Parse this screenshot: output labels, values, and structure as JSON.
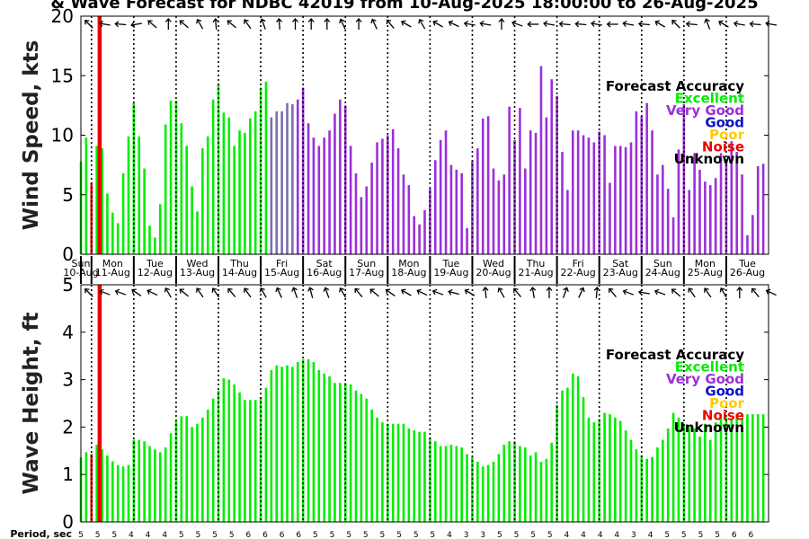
{
  "title": "& Wave Forecast for NDBC 42019 from 10-Aug-2025 18:00:00 to 26-Aug-2025",
  "colors": {
    "excellent": "#00ee00",
    "very_good": "#9b30d9",
    "good": "#1010cc",
    "poor": "#ffcc00",
    "noise": "#ee0000",
    "unknown": "#000000",
    "transition": "#7a6fb0"
  },
  "day_labels": [
    {
      "day": "Sun",
      "date": "10-Aug"
    },
    {
      "day": "Mon",
      "date": "11-Aug"
    },
    {
      "day": "Tue",
      "date": "12-Aug"
    },
    {
      "day": "Wed",
      "date": "13-Aug"
    },
    {
      "day": "Thu",
      "date": "14-Aug"
    },
    {
      "day": "Fri",
      "date": "15-Aug"
    },
    {
      "day": "Sat",
      "date": "16-Aug"
    },
    {
      "day": "Sun",
      "date": "17-Aug"
    },
    {
      "day": "Mon",
      "date": "18-Aug"
    },
    {
      "day": "Tue",
      "date": "19-Aug"
    },
    {
      "day": "Wed",
      "date": "20-Aug"
    },
    {
      "day": "Thu",
      "date": "21-Aug"
    },
    {
      "day": "Fri",
      "date": "22-Aug"
    },
    {
      "day": "Sat",
      "date": "23-Aug"
    },
    {
      "day": "Sun",
      "date": "24-Aug"
    },
    {
      "day": "Mon",
      "date": "25-Aug"
    },
    {
      "day": "Tue",
      "date": "26-Aug"
    }
  ],
  "legend": {
    "title": "Forecast Accuracy",
    "items": [
      {
        "label": "Excellent",
        "color": "#00ee00"
      },
      {
        "label": "Very Good",
        "color": "#9b30d9"
      },
      {
        "label": "Good",
        "color": "#1010cc"
      },
      {
        "label": "Poor",
        "color": "#ffcc00"
      },
      {
        "label": "Noise",
        "color": "#ee0000"
      },
      {
        "label": "Unknown",
        "color": "#000000"
      }
    ]
  },
  "period_label": "Period, sec",
  "chart_data": [
    {
      "type": "bar",
      "ylabel": "Wind Speed, kts",
      "ylim": [
        0,
        20
      ],
      "yticks": [
        0,
        5,
        10,
        15,
        20
      ],
      "x_start": "10-Aug-2025 18:00",
      "step_hours": 3,
      "values": [
        7.8,
        9.8,
        6.0,
        9.1,
        8.9,
        5.1,
        3.5,
        2.6,
        6.8,
        9.9,
        12.7,
        9.9,
        7.2,
        2.4,
        1.4,
        4.2,
        10.9,
        12.9,
        12.9,
        11.0,
        9.1,
        5.7,
        3.6,
        8.9,
        9.9,
        13.0,
        14.3,
        11.9,
        11.5,
        9.1,
        10.4,
        10.2,
        11.4,
        12.0,
        14.0,
        14.5,
        11.5,
        12.0,
        12.0,
        12.7,
        12.6,
        13.0,
        14.0,
        11.0,
        9.8,
        9.1,
        9.8,
        10.4,
        11.8,
        13.0,
        12.5,
        9.1,
        6.8,
        4.8,
        5.7,
        7.7,
        9.4,
        9.7,
        10.0,
        10.5,
        8.9,
        6.7,
        5.8,
        3.2,
        2.5,
        3.7,
        5.5,
        7.9,
        9.6,
        10.4,
        7.5,
        7.1,
        6.8,
        2.2,
        7.8,
        8.9,
        11.4,
        11.6,
        7.2,
        6.2,
        6.7,
        12.4,
        9.6,
        12.3,
        7.2,
        10.4,
        10.2,
        15.8,
        11.5,
        14.7,
        13.3,
        8.6,
        5.4,
        10.4,
        10.4,
        10.0,
        9.8,
        9.4,
        10.3,
        10.0,
        6.0,
        9.1,
        9.1,
        9.0,
        9.4,
        12.0,
        11.6,
        12.7,
        10.4,
        6.7,
        7.5,
        5.5,
        3.1,
        8.8,
        12.6,
        5.4,
        8.5,
        7.1,
        6.1,
        5.8,
        6.4,
        8.5,
        8.0,
        9.5,
        8.6,
        6.7,
        1.6,
        3.3,
        7.4,
        7.6
      ],
      "quality": [
        "E",
        "E",
        "N",
        "E",
        "E",
        "E",
        "E",
        "E",
        "E",
        "E",
        "E",
        "E",
        "E",
        "E",
        "E",
        "E",
        "E",
        "E",
        "E",
        "E",
        "E",
        "E",
        "E",
        "E",
        "E",
        "E",
        "E",
        "E",
        "E",
        "E",
        "E",
        "E",
        "E",
        "E",
        "E",
        "E",
        "T",
        "T",
        "T",
        "T",
        "T",
        "V",
        "V",
        "V",
        "V",
        "V",
        "V",
        "V",
        "V",
        "V",
        "V",
        "V",
        "V",
        "V",
        "V",
        "V",
        "V",
        "V",
        "V",
        "V",
        "V",
        "V",
        "V",
        "V",
        "V",
        "V",
        "V",
        "V",
        "V",
        "V",
        "V",
        "V",
        "V",
        "V",
        "V",
        "V",
        "V",
        "V",
        "V",
        "V",
        "V",
        "V",
        "V",
        "V",
        "V",
        "V",
        "V",
        "V",
        "V",
        "V",
        "V",
        "V",
        "V",
        "V",
        "V",
        "V",
        "V",
        "V",
        "V",
        "V",
        "V",
        "V",
        "V",
        "V",
        "V",
        "V",
        "V",
        "V",
        "V",
        "V",
        "V",
        "V",
        "V",
        "V",
        "V",
        "V",
        "V",
        "V",
        "V",
        "V",
        "V",
        "V",
        "V",
        "V",
        "V",
        "V",
        "V",
        "V",
        "V",
        "V"
      ],
      "direction_deg": [
        135,
        115,
        120,
        100,
        100,
        100,
        95,
        90,
        90,
        80,
        95,
        115,
        130,
        145,
        160,
        180,
        150,
        135,
        130,
        125,
        135,
        150,
        160,
        170,
        175,
        155,
        140,
        130,
        130,
        135,
        145,
        150,
        165,
        160,
        175,
        170,
        175,
        180,
        175,
        180,
        165,
        160,
        180,
        195,
        180,
        180,
        175,
        165,
        155,
        155,
        165,
        180,
        195,
        175,
        155,
        150,
        140,
        140,
        125,
        120,
        120,
        130,
        145,
        150,
        145,
        130,
        120,
        110,
        110,
        115,
        115,
        100,
        100,
        95,
        95,
        100,
        110,
        180,
        180,
        170,
        160,
        110,
        100,
        95,
        90,
        90,
        95,
        100,
        100,
        100,
        95,
        90,
        90,
        95,
        100,
        100,
        100,
        90,
        90,
        90,
        90,
        95,
        100,
        100,
        95,
        95,
        100,
        100,
        120,
        140,
        155,
        135,
        110,
        100,
        95,
        120,
        140,
        160,
        150,
        130,
        120,
        110,
        105,
        100,
        100,
        95,
        95,
        100,
        100,
        100
      ]
    },
    {
      "type": "bar",
      "ylabel": "Wave Height, ft",
      "ylim": [
        0,
        5
      ],
      "yticks": [
        0,
        1,
        2,
        3,
        4,
        5
      ],
      "x_start": "10-Aug-2025 18:00",
      "step_hours": 3,
      "values": [
        1.36,
        1.47,
        1.43,
        1.63,
        1.53,
        1.4,
        1.28,
        1.2,
        1.17,
        1.2,
        1.73,
        1.73,
        1.7,
        1.6,
        1.53,
        1.47,
        1.57,
        1.87,
        2.13,
        2.23,
        2.23,
        2.0,
        2.07,
        2.2,
        2.37,
        2.6,
        2.77,
        3.03,
        3.0,
        2.9,
        2.73,
        2.57,
        2.57,
        2.57,
        2.63,
        2.83,
        3.2,
        3.3,
        3.27,
        3.3,
        3.27,
        3.37,
        3.43,
        3.43,
        3.37,
        3.2,
        3.13,
        3.07,
        2.93,
        2.93,
        2.93,
        2.9,
        2.77,
        2.7,
        2.6,
        2.37,
        2.2,
        2.1,
        2.07,
        2.07,
        2.07,
        2.07,
        1.97,
        1.93,
        1.9,
        1.9,
        1.77,
        1.7,
        1.6,
        1.6,
        1.63,
        1.6,
        1.57,
        1.43,
        1.37,
        1.27,
        1.17,
        1.2,
        1.27,
        1.43,
        1.63,
        1.7,
        1.7,
        1.6,
        1.57,
        1.4,
        1.47,
        1.27,
        1.33,
        1.67,
        2.47,
        2.77,
        2.83,
        3.13,
        3.07,
        2.63,
        2.2,
        2.1,
        2.17,
        2.3,
        2.27,
        2.2,
        2.13,
        1.93,
        1.73,
        1.53,
        1.4,
        1.33,
        1.37,
        1.57,
        1.73,
        1.97,
        2.3,
        2.2,
        2.07,
        2.0,
        1.97,
        1.8,
        2.07,
        1.73,
        2.1,
        2.2,
        2.2,
        2.17,
        2.27,
        2.2,
        2.27,
        2.27,
        2.27,
        2.27
      ],
      "quality": [
        "E",
        "E",
        "N",
        "E",
        "E",
        "E",
        "E",
        "E",
        "E",
        "E",
        "E",
        "E",
        "E",
        "E",
        "E",
        "E",
        "E",
        "E",
        "E",
        "E",
        "E",
        "E",
        "E",
        "E",
        "E",
        "E",
        "E",
        "E",
        "E",
        "E",
        "E",
        "E",
        "E",
        "E",
        "E",
        "E",
        "E",
        "E",
        "E",
        "E",
        "E",
        "E",
        "E",
        "E",
        "E",
        "E",
        "E",
        "E",
        "E",
        "E",
        "E",
        "E",
        "E",
        "E",
        "E",
        "E",
        "E",
        "E",
        "E",
        "E",
        "E",
        "E",
        "E",
        "E",
        "E",
        "E",
        "E",
        "E",
        "E",
        "E",
        "E",
        "E",
        "E",
        "E",
        "E",
        "E",
        "E",
        "E",
        "E",
        "E",
        "E",
        "E",
        "E",
        "E",
        "E",
        "E",
        "E",
        "E",
        "E",
        "E",
        "E",
        "E",
        "E",
        "E",
        "E",
        "E",
        "E",
        "E",
        "E",
        "E",
        "E",
        "E",
        "E",
        "E",
        "E",
        "E",
        "E",
        "E",
        "E",
        "E",
        "E",
        "E",
        "E",
        "E",
        "E",
        "E",
        "E",
        "E",
        "E",
        "E",
        "E",
        "E",
        "E",
        "E",
        "E",
        "E",
        "E",
        "E",
        "E",
        "E"
      ],
      "direction_deg": [
        135,
        130,
        115,
        110,
        110,
        110,
        110,
        110,
        120,
        125,
        125,
        120,
        115,
        140,
        150,
        150,
        145,
        130,
        130,
        130,
        140,
        145,
        150,
        150,
        145,
        145,
        140,
        140,
        140,
        145,
        145,
        145,
        150,
        150,
        150,
        155,
        155,
        155,
        160,
        160,
        155,
        160,
        165,
        165,
        160,
        160,
        155,
        150,
        150,
        145,
        145,
        140,
        140,
        135,
        130,
        130,
        130,
        125,
        125,
        120,
        120,
        120,
        115,
        115,
        115,
        110,
        110,
        105,
        105,
        105,
        110,
        110,
        120,
        140,
        160,
        175,
        175,
        160,
        150,
        145,
        140,
        140,
        150,
        160,
        170,
        170,
        175,
        180,
        195,
        195,
        200,
        215,
        215,
        205,
        200,
        195,
        185,
        165,
        150,
        140,
        135,
        120,
        110,
        105,
        100,
        100,
        100,
        105,
        110,
        115,
        120,
        130,
        130,
        140,
        145,
        150,
        150,
        145,
        145,
        145,
        150,
        160,
        180,
        180,
        160,
        150,
        140,
        130,
        120,
        115
      ]
    }
  ],
  "periods": [
    "5",
    "5",
    "5",
    "4",
    "4",
    "4",
    "5",
    "5",
    "5",
    "5",
    "6",
    "6",
    "6",
    "6",
    "5",
    "5",
    "5",
    "5",
    "5",
    "5",
    "5",
    "5",
    "4",
    "3",
    "3",
    "5",
    "5",
    "5",
    "5",
    "4",
    "4",
    "4",
    "4",
    "3",
    "4",
    "5",
    "5",
    "5",
    "5",
    "6",
    "6"
  ]
}
